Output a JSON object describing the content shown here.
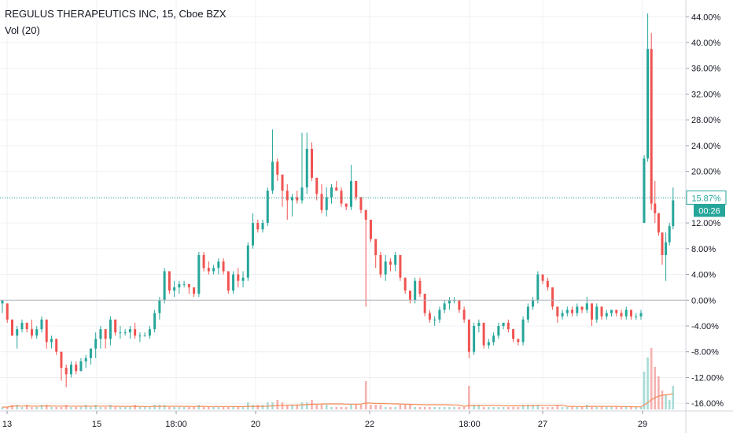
{
  "header": {
    "symbol_line": "REGULUS THERAPEUTICS INC, 15, Cboe BZX",
    "volume_line": "Vol (20)"
  },
  "price_badge": {
    "value": "15.87%",
    "countdown": "00:26",
    "color": "#26a69a"
  },
  "colors": {
    "up": "#26a69a",
    "down": "#ef5350",
    "vol_up": "#a8dcd6",
    "vol_down": "#f5b1af",
    "vol_ma": "#f48b57",
    "grid": "#eef0f3",
    "axis_text": "#131722"
  },
  "chart_data": {
    "type": "candlestick",
    "title": "REGULUS THERAPEUTICS INC, 15, Cboe BZX",
    "y_axis": {
      "unit": "%",
      "min": -17.2,
      "max": 46.6,
      "scale": "percent",
      "ticks": [
        "44.00%",
        "40.00%",
        "36.00%",
        "32.00%",
        "28.00%",
        "24.00%",
        "20.00%",
        "16.00%",
        "12.00%",
        "8.00%",
        "4.00%",
        "0.00%",
        "-4.00%",
        "-8.00%",
        "-12.00%",
        "-16.00%"
      ]
    },
    "x_axis": {
      "tick_labels": [
        "13",
        "15",
        "18:00",
        "20",
        "22",
        "18:00",
        "27",
        "29"
      ]
    },
    "last_value": 15.87,
    "grid": true,
    "series": [
      {
        "type": "candles",
        "points": [
          [
            0,
            -0.5,
            0.0,
            -2.0,
            0.0
          ],
          [
            1,
            -0.5,
            -0.5,
            -3.5,
            -3.0
          ],
          [
            2,
            -3,
            -3,
            -5.5,
            -5.5
          ],
          [
            3,
            -5.5,
            -4.0,
            -7.5,
            -4.5
          ],
          [
            4,
            -4.5,
            -3.0,
            -5.0,
            -3.5
          ],
          [
            5,
            -3.5,
            -3.5,
            -5.0,
            -4.5
          ],
          [
            6,
            -4.5,
            -3.0,
            -6.0,
            -5.5
          ],
          [
            7,
            -5.5,
            -4.0,
            -6.0,
            -4.5
          ],
          [
            8,
            -4.5,
            -2.5,
            -5.0,
            -3.0
          ],
          [
            9,
            -3,
            -3,
            -7.5,
            -6.5
          ],
          [
            10,
            -6.5,
            -5.5,
            -7.5,
            -6.0
          ],
          [
            11,
            -6,
            -6,
            -8.5,
            -8.0
          ],
          [
            12,
            -8,
            -8,
            -12.5,
            -10.5
          ],
          [
            13,
            -10.5,
            -10.0,
            -13.5,
            -11.5
          ],
          [
            14,
            -11.5,
            -9.5,
            -12.0,
            -10.0
          ],
          [
            15,
            -10,
            -9.5,
            -11.5,
            -11.0
          ],
          [
            16,
            -11,
            -9.0,
            -11.0,
            -9.5
          ],
          [
            17,
            -9.5,
            -8.5,
            -10.5,
            -9.0
          ],
          [
            18,
            -9,
            -7.5,
            -10.0,
            -7.5
          ],
          [
            19,
            -7.5,
            -5.0,
            -9.0,
            -6.0
          ],
          [
            20,
            -6,
            -4.0,
            -7.5,
            -4.5
          ],
          [
            21,
            -4.5,
            -4.5,
            -7.5,
            -6.0
          ],
          [
            22,
            -6,
            -2.5,
            -7.0,
            -3.0
          ],
          [
            23,
            -3,
            -3,
            -5.5,
            -5.0
          ],
          [
            24,
            -5,
            -4.0,
            -6.0,
            -5.0
          ],
          [
            25,
            -5,
            -4.5,
            -5.5,
            -5.0
          ],
          [
            26,
            -5,
            -4.0,
            -6.0,
            -4.5
          ],
          [
            27,
            -4.5,
            -3.5,
            -6.0,
            -5.5
          ],
          [
            28,
            -5.5,
            -5.0,
            -6.5,
            -5.5
          ],
          [
            29,
            -5.5,
            -5,
            -5.5,
            -5.5
          ],
          [
            30,
            -5.5,
            -4.0,
            -6.0,
            -4.5
          ],
          [
            31,
            -4.5,
            -1.5,
            -5.0,
            -2.0
          ],
          [
            32,
            -2,
            0.5,
            -3.0,
            0.0
          ],
          [
            33,
            0,
            5.0,
            -0.5,
            4.5
          ],
          [
            34,
            4.5,
            4.5,
            1.0,
            1.5
          ],
          [
            35,
            1.5,
            3.0,
            0.5,
            2.0
          ],
          [
            36,
            2,
            3.0,
            1.0,
            2.5
          ],
          [
            37,
            2.5,
            3.0,
            2.0,
            2.5
          ],
          [
            38,
            2.5,
            2.5,
            1.0,
            2.0
          ],
          [
            39,
            2,
            2.0,
            0.5,
            1.0
          ],
          [
            40,
            1,
            7.5,
            0.5,
            7.0
          ],
          [
            41,
            7,
            7.5,
            4.5,
            5.0
          ],
          [
            42,
            5,
            6.0,
            4.0,
            4.5
          ],
          [
            43,
            4.5,
            5.5,
            4.0,
            5.0
          ],
          [
            44,
            5,
            6.5,
            4.0,
            6.0
          ],
          [
            45,
            6,
            6.5,
            4.0,
            4.5
          ],
          [
            46,
            4.5,
            4.5,
            1.0,
            1.5
          ],
          [
            47,
            1.5,
            4.5,
            1.0,
            4.0
          ],
          [
            48,
            4,
            5.0,
            2.0,
            3.0
          ],
          [
            49,
            3,
            4.5,
            2.0,
            3.5
          ],
          [
            50,
            3.5,
            9.0,
            3.0,
            8.5
          ],
          [
            51,
            8.5,
            13.5,
            8.0,
            12.0
          ],
          [
            52,
            12,
            12.5,
            10.5,
            11.0
          ],
          [
            53,
            11,
            12.5,
            10.5,
            12.0
          ],
          [
            54,
            12,
            17.5,
            11.5,
            17.0
          ],
          [
            55,
            17,
            26.5,
            16.5,
            21.5
          ],
          [
            56,
            21.5,
            22.0,
            18.5,
            19.5
          ],
          [
            57,
            19.5,
            19.5,
            14.5,
            17.0
          ],
          [
            58,
            17,
            18.0,
            12.5,
            15.5
          ],
          [
            59,
            15.5,
            16.5,
            13.0,
            16.0
          ],
          [
            60,
            16,
            17.0,
            15.0,
            15.5
          ],
          [
            61,
            15.5,
            26.0,
            15.0,
            17.5
          ],
          [
            62,
            17.5,
            26.0,
            16.5,
            23.5
          ],
          [
            63,
            23.5,
            24.5,
            18.5,
            19.0
          ],
          [
            64,
            19,
            19.0,
            15.5,
            16.5
          ],
          [
            65,
            16.5,
            18.0,
            13.5,
            14.0
          ],
          [
            66,
            14,
            17.5,
            13.0,
            16.0
          ],
          [
            67,
            16,
            18.0,
            15.0,
            17.5
          ],
          [
            68,
            17.5,
            18.5,
            17.0,
            17.0
          ],
          [
            69,
            17,
            17.5,
            14.5,
            15.0
          ],
          [
            70,
            15,
            15.0,
            14.0,
            14.5
          ],
          [
            71,
            14.5,
            21.0,
            14.0,
            18.5
          ],
          [
            72,
            18.5,
            18.5,
            15.5,
            16.0
          ],
          [
            73,
            16,
            16.0,
            13.5,
            14.0
          ],
          [
            74,
            14,
            14.0,
            -1.0,
            12.5
          ],
          [
            75,
            12.5,
            12.5,
            9.0,
            9.5
          ],
          [
            76,
            9.5,
            9.5,
            5.0,
            7.0
          ],
          [
            77,
            7,
            7.5,
            3.5,
            4.0
          ],
          [
            78,
            4,
            7.0,
            3.0,
            6.0
          ],
          [
            79,
            6,
            6.5,
            4.5,
            5.5
          ],
          [
            80,
            5.5,
            7.5,
            4.5,
            7.0
          ],
          [
            81,
            7,
            7.0,
            3.0,
            3.5
          ],
          [
            82,
            3.5,
            3.5,
            1.0,
            1.5
          ],
          [
            83,
            1.5,
            1.5,
            -0.5,
            0.0
          ],
          [
            84,
            0,
            3.5,
            -0.5,
            3.0
          ],
          [
            85,
            3,
            3.5,
            0.5,
            1.0
          ],
          [
            86,
            1,
            1.0,
            -2.5,
            -2.0
          ],
          [
            87,
            -2,
            -1.5,
            -3.5,
            -3.0
          ],
          [
            88,
            -3,
            -2.5,
            -4.0,
            -3.0
          ],
          [
            89,
            -3,
            -1.0,
            -3.5,
            -1.5
          ],
          [
            90,
            -1.5,
            0.0,
            -2.0,
            -0.5
          ],
          [
            91,
            -0.5,
            0.5,
            -1.5,
            0.0
          ],
          [
            92,
            0,
            0.5,
            -0.5,
            0.0
          ],
          [
            93,
            0,
            0,
            -2.0,
            -1.5
          ],
          [
            94,
            -1.5,
            -1.0,
            -3.5,
            -3.0
          ],
          [
            95,
            -3,
            -3,
            -9.0,
            -8.0
          ],
          [
            96,
            -8,
            -3.5,
            -8.5,
            -4.0
          ],
          [
            97,
            -4,
            -3.0,
            -5.0,
            -3.5
          ],
          [
            98,
            -3.5,
            -3.5,
            -7.5,
            -7.0
          ],
          [
            99,
            -7,
            -6.0,
            -7.5,
            -6.5
          ],
          [
            100,
            -6.5,
            -5.0,
            -7.0,
            -5.5
          ],
          [
            101,
            -5.5,
            -3.5,
            -6.0,
            -4.0
          ],
          [
            102,
            -4,
            -3.5,
            -4.5,
            -3.5
          ],
          [
            103,
            -3.5,
            -3.0,
            -5.0,
            -4.5
          ],
          [
            104,
            -4.5,
            -4.5,
            -6.5,
            -6.0
          ],
          [
            105,
            -6,
            -6,
            -7.0,
            -6.5
          ],
          [
            106,
            -6.5,
            -2.5,
            -7.0,
            -3.0
          ],
          [
            107,
            -3,
            -0.5,
            -3.5,
            -1.0
          ],
          [
            108,
            -1,
            0.5,
            -1.5,
            0.0
          ],
          [
            109,
            0,
            4.5,
            -0.5,
            4.0
          ],
          [
            110,
            4,
            4.0,
            2.5,
            3.0
          ],
          [
            111,
            3,
            3.5,
            1.5,
            2.0
          ],
          [
            112,
            2,
            2.0,
            -1.5,
            -1.0
          ],
          [
            113,
            -1,
            -1,
            -3.5,
            -2.5
          ],
          [
            114,
            -2.5,
            -1.5,
            -3.0,
            -2.0
          ],
          [
            115,
            -2,
            -1.0,
            -2.5,
            -1.5
          ],
          [
            116,
            -1.5,
            -1.0,
            -2.5,
            -2.0
          ],
          [
            117,
            -2,
            -0.5,
            -2.5,
            -1.0
          ],
          [
            118,
            -1,
            -1,
            -2.0,
            -1.5
          ],
          [
            119,
            -1.5,
            0.5,
            -2.0,
            -0.5
          ],
          [
            120,
            -0.5,
            -0.5,
            -4.0,
            -3.0
          ],
          [
            121,
            -3,
            -0.5,
            -3.5,
            -1.0
          ],
          [
            122,
            -1,
            -1.0,
            -3.0,
            -2.5
          ],
          [
            123,
            -2.5,
            -1.5,
            -3.0,
            -2.0
          ],
          [
            124,
            -2,
            -1.5,
            -2.5,
            -1.5
          ],
          [
            125,
            -1.5,
            -1.5,
            -2.5,
            -2.0
          ],
          [
            126,
            -2,
            -1.5,
            -3.0,
            -2.5
          ],
          [
            127,
            -2.5,
            -1.0,
            -3.0,
            -1.5
          ],
          [
            128,
            -1.5,
            -1.5,
            -3.0,
            -2.5
          ],
          [
            129,
            -2.5,
            -2.0,
            -3.0,
            -2.5
          ],
          [
            130,
            -2.5,
            -1.5,
            -3.0,
            -2.0
          ],
          [
            131,
            12.0,
            22.5,
            12.0,
            22.0
          ],
          [
            132,
            22,
            44.5,
            21.5,
            39.0
          ],
          [
            133,
            39,
            41.5,
            14.0,
            15.0
          ],
          [
            134,
            15,
            18.5,
            12.0,
            13.5
          ],
          [
            135,
            13.5,
            13.5,
            10.0,
            10.5
          ],
          [
            136,
            10.5,
            10.5,
            5.5,
            7.0
          ],
          [
            137,
            7,
            10.5,
            3.0,
            9.0
          ],
          [
            138,
            9,
            12.0,
            8.5,
            11.5
          ],
          [
            139,
            11.5,
            17.5,
            11.0,
            15.5
          ]
        ]
      },
      {
        "type": "volume",
        "values": [
          1,
          1,
          2,
          2,
          1,
          2,
          1,
          1,
          2,
          2,
          1,
          1,
          1,
          2,
          1,
          1,
          1,
          2,
          1,
          2,
          1,
          1,
          2,
          1,
          1,
          1,
          1,
          2,
          1,
          1,
          1,
          2,
          2,
          2,
          1,
          1,
          1,
          1,
          1,
          1,
          2,
          1,
          1,
          1,
          1,
          1,
          1,
          1,
          1,
          1,
          3,
          2,
          2,
          2,
          3,
          3,
          4,
          3,
          2,
          2,
          2,
          3,
          3,
          4,
          2,
          2,
          2,
          1,
          1,
          1,
          1,
          2,
          2,
          2,
          12,
          2,
          2,
          2,
          1,
          1,
          1,
          2,
          2,
          2,
          1,
          1,
          1,
          1,
          1,
          1,
          1,
          1,
          1,
          1,
          1,
          10,
          2,
          2,
          1,
          1,
          1,
          1,
          1,
          1,
          1,
          1,
          2,
          2,
          2,
          2,
          1,
          1,
          1,
          2,
          1,
          1,
          1,
          1,
          1,
          2,
          1,
          1,
          1,
          1,
          1,
          1,
          1,
          1,
          1,
          1,
          1,
          16,
          22,
          26,
          18,
          14,
          8,
          6,
          4,
          10
        ]
      },
      {
        "type": "volume_ma",
        "name": "Vol (20)"
      }
    ]
  }
}
